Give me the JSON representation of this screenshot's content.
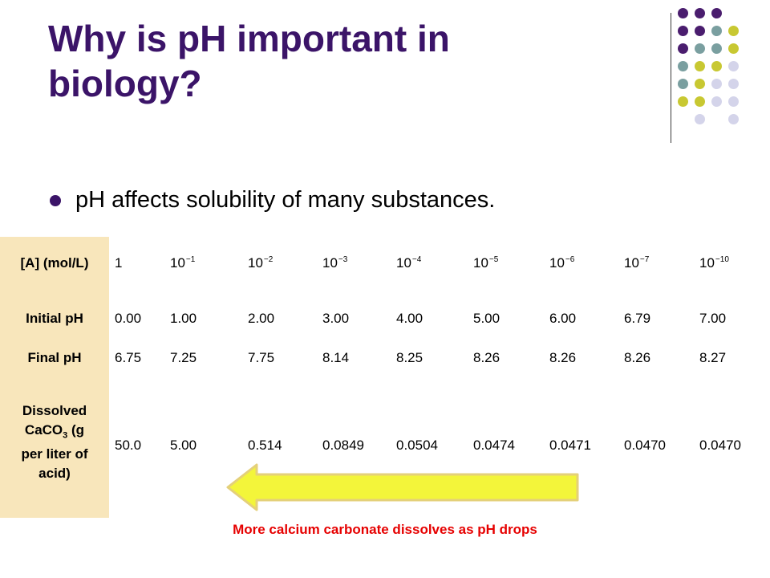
{
  "title": {
    "line1": "Why is pH important in",
    "line2": "biology?"
  },
  "bullet": "pH affects solubility of many substances.",
  "table": {
    "row_headers": {
      "concentration": "[A] (mol/L)",
      "initial_ph": "Initial pH",
      "final_ph": "Final pH",
      "dissolved": {
        "line1": "Dissolved",
        "line2_prefix": "CaCO",
        "line2_sub": "3",
        "line2_suffix": " (g",
        "line3": "per liter of",
        "line4": "acid)"
      }
    },
    "concentration": [
      {
        "base": "1",
        "exp": ""
      },
      {
        "base": "10",
        "exp": "−1"
      },
      {
        "base": "10",
        "exp": "−2"
      },
      {
        "base": "10",
        "exp": "−3"
      },
      {
        "base": "10",
        "exp": "−4"
      },
      {
        "base": "10",
        "exp": "−5"
      },
      {
        "base": "10",
        "exp": "−6"
      },
      {
        "base": "10",
        "exp": "−7"
      },
      {
        "base": "10",
        "exp": "−10"
      }
    ],
    "initial_ph": [
      "0.00",
      "1.00",
      "2.00",
      "3.00",
      "4.00",
      "5.00",
      "6.00",
      "6.79",
      "7.00"
    ],
    "final_ph": [
      "6.75",
      "7.25",
      "7.75",
      "8.14",
      "8.25",
      "8.26",
      "8.26",
      "8.26",
      "8.27"
    ],
    "dissolved": [
      "50.0",
      "5.00",
      "0.514",
      "0.0849",
      "0.0504",
      "0.0474",
      "0.0471",
      "0.0470",
      "0.0470"
    ]
  },
  "caption": "More calcium carbonate dissolves as pH drops",
  "colors": {
    "title": "#3b1468",
    "sidebar": "#f8e6bb",
    "caption": "#e60000",
    "arrow_fill": "#f3f53a",
    "dot_purple": "#4a1d6e",
    "dot_teal": "#7a9fa0",
    "dot_olive": "#c8c832",
    "dot_lavender": "#d4d4ea"
  },
  "decor": {
    "dots": [
      [
        "purple",
        "purple",
        "purple",
        null
      ],
      [
        "purple",
        "purple",
        "teal",
        "olive"
      ],
      [
        "purple",
        "teal",
        "teal",
        "olive"
      ],
      [
        "teal",
        "olive",
        "olive",
        "lavender"
      ],
      [
        "teal",
        "olive",
        "lavender",
        "lavender"
      ],
      [
        "olive",
        "olive",
        "lavender",
        "lavender"
      ],
      [
        null,
        "lavender",
        null,
        "lavender"
      ]
    ]
  }
}
